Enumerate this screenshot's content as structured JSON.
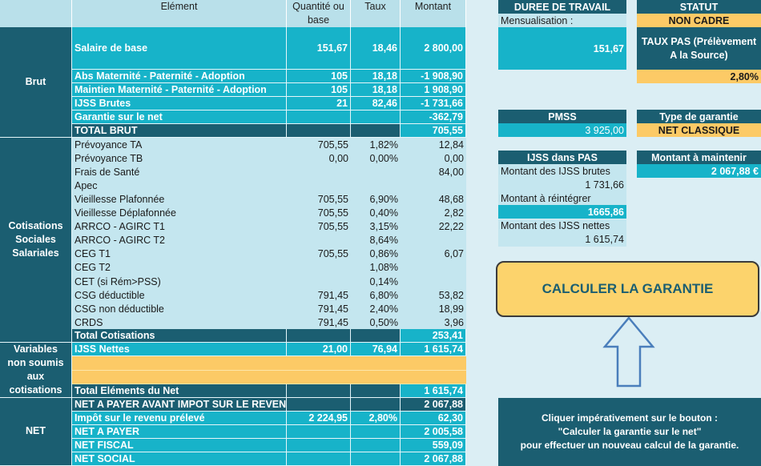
{
  "table": {
    "headers": [
      "Elément",
      "Quantité ou base",
      "Taux",
      "Montant"
    ],
    "groups": [
      "Brut",
      "Cotisations Sociales Salariales",
      "Variables non soumis aux cotisations",
      "NET"
    ],
    "rows": [
      [
        "Salaire de base",
        "151,67",
        "18,46",
        "2 800,00"
      ],
      [
        "Abs Maternité - Paternité - Adoption",
        "105",
        "18,18",
        "-1 908,90"
      ],
      [
        "Maintien Maternité - Paternité - Adoption",
        "105",
        "18,18",
        "1 908,90"
      ],
      [
        "IJSS Brutes",
        "21",
        "82,46",
        "-1 731,66"
      ],
      [
        "Garantie sur le net",
        null,
        null,
        "-362,79"
      ],
      [
        "TOTAL BRUT",
        null,
        null,
        "705,55"
      ],
      [
        "Prévoyance TA",
        "705,55",
        "1,82%",
        "12,84"
      ],
      [
        "Prévoyance TB",
        "0,00",
        "0,00%",
        "0,00"
      ],
      [
        "Frais de Santé",
        null,
        null,
        "84,00"
      ],
      [
        "Apec",
        null,
        null,
        null
      ],
      [
        "Vieillesse Plafonnée",
        "705,55",
        "6,90%",
        "48,68"
      ],
      [
        "Vieillesse Déplafonnée",
        "705,55",
        "0,40%",
        "2,82"
      ],
      [
        "ARRCO - AGIRC T1",
        "705,55",
        "3,15%",
        "22,22"
      ],
      [
        "ARRCO - AGIRC T2",
        null,
        "8,64%",
        null
      ],
      [
        "CEG T1",
        "705,55",
        "0,86%",
        "6,07"
      ],
      [
        "CEG T2",
        null,
        "1,08%",
        null
      ],
      [
        "CET (si Rém>PSS)",
        null,
        "0,14%",
        null
      ],
      [
        "CSG déductible",
        "791,45",
        "6,80%",
        "53,82"
      ],
      [
        "CSG non déductible",
        "791,45",
        "2,40%",
        "18,99"
      ],
      [
        "CRDS",
        "791,45",
        "0,50%",
        "3,96"
      ],
      [
        "Total Cotisations",
        null,
        null,
        "253,41"
      ],
      [
        "IJSS Nettes",
        "21,00",
        "76,94",
        "1 615,74"
      ],
      [
        "Total Eléments du Net",
        null,
        null,
        "1 615,74"
      ],
      [
        "NET A PAYER AVANT IMPOT SUR LE REVENU",
        null,
        null,
        "2 067,88"
      ],
      [
        "Impôt sur le revenu prélevé",
        "2 224,95",
        "2,80%",
        "62,30"
      ],
      [
        "NET A PAYER",
        null,
        null,
        "2 005,58"
      ],
      [
        "NET FISCAL",
        null,
        null,
        "559,09"
      ],
      [
        "NET SOCIAL",
        null,
        null,
        "2 067,88"
      ]
    ]
  },
  "panels": {
    "duree_travail": {
      "title": "DUREE DE TRAVAIL",
      "label": "Mensualisation :",
      "value": "151,67"
    },
    "statut": {
      "title": "STATUT",
      "value": "NON CADRE"
    },
    "taux_pas": {
      "title": "TAUX PAS (Prélèvement A la Source)",
      "value": "2,80%"
    },
    "pmss": {
      "title": "PMSS",
      "value": "3 925,00"
    },
    "type_garantie": {
      "title": "Type de garantie",
      "value": "NET CLASSIQUE"
    },
    "ijss_pas": {
      "title": "IJSS dans PAS",
      "brutes_label": "Montant des IJSS brutes",
      "brutes_value": "1 731,66",
      "reintegrer_label": "Montant à réintégrer",
      "reintegrer_value": "1665,86",
      "nettes_label": "Montant des IJSS nettes",
      "nettes_value": "1 615,74"
    },
    "montant_maintenir": {
      "title": "Montant à maintenir",
      "value": "2 067,88 €"
    },
    "button": "CALCULER LA GARANTIE",
    "instructions": [
      "Cliquer impérativement sur le bouton :",
      "\"Calculer la garantie sur le net\"",
      "pour effectuer un nouveau calcul de la garantie."
    ]
  }
}
